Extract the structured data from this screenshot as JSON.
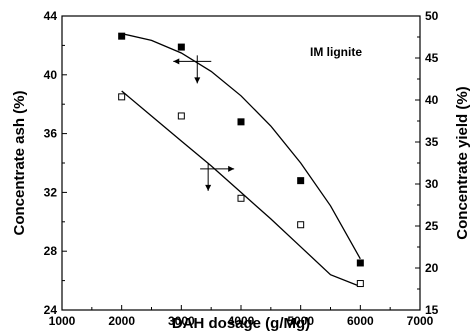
{
  "chart_data": {
    "type": "scatter",
    "xlabel": "DAH dosage (g/Mg)",
    "ylabel_left": "Concentrate ash (%)",
    "ylabel_right": "Concentrate yield (%)",
    "xlim": [
      1000,
      7000
    ],
    "ylim_left": [
      24,
      44
    ],
    "ylim_right": [
      15,
      50
    ],
    "x_ticks": [
      1000,
      2000,
      3000,
      4000,
      5000,
      6000,
      7000
    ],
    "y_left_ticks": [
      24,
      28,
      32,
      36,
      40,
      44
    ],
    "y_right_ticks": [
      15,
      20,
      25,
      30,
      35,
      40,
      45,
      50
    ],
    "annotation": "IM lignite",
    "series": [
      {
        "axis": "right",
        "marker": "filled-square",
        "x": [
          2000,
          3000,
          4000,
          5000,
          6000
        ],
        "y": [
          47.6,
          46.3,
          37.4,
          30.4,
          20.6
        ],
        "fit": [
          [
            2000,
            47.9
          ],
          [
            2500,
            47.1
          ],
          [
            3000,
            45.6
          ],
          [
            3500,
            43.4
          ],
          [
            4000,
            40.5
          ],
          [
            4500,
            36.9
          ],
          [
            5000,
            32.5
          ],
          [
            5500,
            27.4
          ],
          [
            6000,
            21.1
          ]
        ]
      },
      {
        "axis": "left",
        "marker": "open-square",
        "x": [
          2000,
          3000,
          4000,
          5000,
          6000
        ],
        "y": [
          38.5,
          37.2,
          31.6,
          29.8,
          25.8
        ],
        "fit": [
          [
            2000,
            38.9
          ],
          [
            2500,
            37.2
          ],
          [
            3000,
            35.5
          ],
          [
            3500,
            33.8
          ],
          [
            4000,
            32.0
          ],
          [
            4500,
            30.2
          ],
          [
            5000,
            28.3
          ],
          [
            5500,
            26.4
          ],
          [
            6000,
            25.6
          ]
        ]
      }
    ]
  }
}
